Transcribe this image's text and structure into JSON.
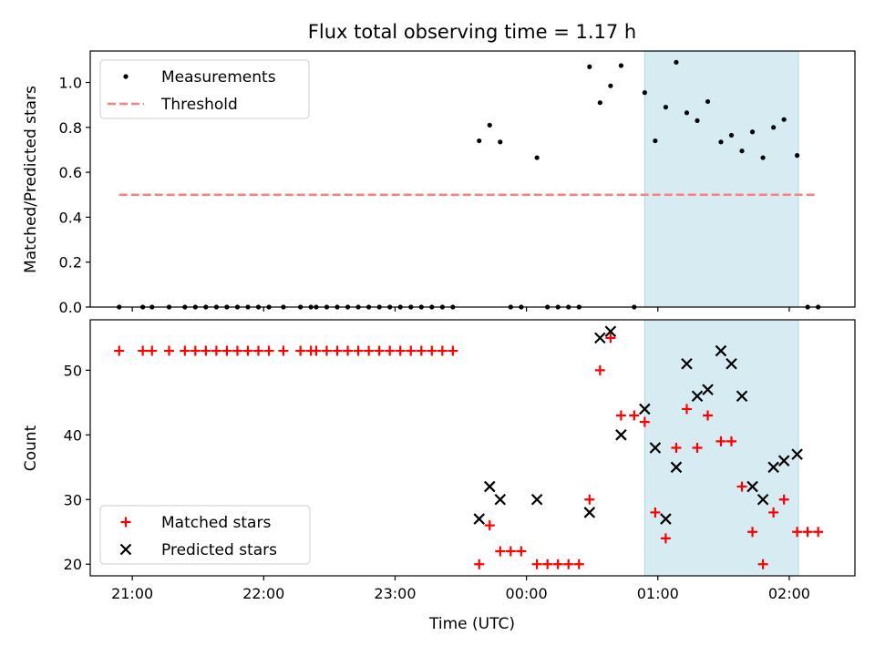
{
  "figure": {
    "title": "Flux total observing time = 1.17 h",
    "x_tick_labels": [
      "21:00",
      "22:00",
      "23:00",
      "00:00",
      "01:00",
      "02:00"
    ],
    "x_tick_hours": [
      21,
      22,
      23,
      24,
      25,
      26
    ],
    "xlabel": "Time (UTC)",
    "xlim_hours": [
      20.68,
      26.5
    ],
    "highlight_span_hours": [
      24.9,
      26.07
    ],
    "highlight_color": "#add8e6"
  },
  "chart_data": [
    {
      "type": "scatter",
      "ylabel": "Matched/Predicted stars",
      "ylim": [
        0,
        1.14
      ],
      "y_ticks": [
        "0.0",
        "0.2",
        "0.4",
        "0.6",
        "0.8",
        "1.0"
      ],
      "y_tick_values": [
        0,
        0.2,
        0.4,
        0.6,
        0.8,
        1.0
      ],
      "legend_position": "top-left",
      "series": [
        {
          "name": "Measurements",
          "color": "#000000",
          "marker": "dot",
          "points": [
            [
              20.9,
              0.0
            ],
            [
              21.08,
              0.0
            ],
            [
              21.15,
              0.0
            ],
            [
              21.28,
              0.0
            ],
            [
              21.4,
              0.0
            ],
            [
              21.48,
              0.0
            ],
            [
              21.56,
              0.0
            ],
            [
              21.64,
              0.0
            ],
            [
              21.72,
              0.0
            ],
            [
              21.8,
              0.0
            ],
            [
              21.88,
              0.0
            ],
            [
              21.96,
              0.0
            ],
            [
              22.04,
              0.0
            ],
            [
              22.15,
              0.0
            ],
            [
              22.28,
              0.0
            ],
            [
              22.36,
              0.0
            ],
            [
              22.4,
              0.0
            ],
            [
              22.48,
              0.0
            ],
            [
              22.56,
              0.0
            ],
            [
              22.64,
              0.0
            ],
            [
              22.72,
              0.0
            ],
            [
              22.8,
              0.0
            ],
            [
              22.88,
              0.0
            ],
            [
              22.96,
              0.0
            ],
            [
              23.04,
              0.0
            ],
            [
              23.12,
              0.0
            ],
            [
              23.2,
              0.0
            ],
            [
              23.28,
              0.0
            ],
            [
              23.36,
              0.0
            ],
            [
              23.44,
              0.0
            ],
            [
              23.64,
              0.74
            ],
            [
              23.72,
              0.81
            ],
            [
              23.8,
              0.735
            ],
            [
              23.88,
              0.0
            ],
            [
              23.96,
              0.0
            ],
            [
              24.08,
              0.665
            ],
            [
              24.16,
              0.0
            ],
            [
              24.24,
              0.0
            ],
            [
              24.32,
              0.0
            ],
            [
              24.4,
              0.0
            ],
            [
              24.48,
              1.07
            ],
            [
              24.56,
              0.91
            ],
            [
              24.64,
              0.985
            ],
            [
              24.72,
              1.075
            ],
            [
              24.82,
              0.0
            ],
            [
              24.9,
              0.955
            ],
            [
              24.98,
              0.74
            ],
            [
              25.06,
              0.89
            ],
            [
              25.14,
              1.09
            ],
            [
              25.22,
              0.865
            ],
            [
              25.3,
              0.83
            ],
            [
              25.38,
              0.915
            ],
            [
              25.48,
              0.735
            ],
            [
              25.56,
              0.765
            ],
            [
              25.64,
              0.695
            ],
            [
              25.72,
              0.78
            ],
            [
              25.8,
              0.665
            ],
            [
              25.88,
              0.8
            ],
            [
              25.96,
              0.835
            ],
            [
              26.06,
              0.675
            ],
            [
              26.14,
              0.0
            ],
            [
              26.22,
              0.0
            ]
          ]
        },
        {
          "name": "Threshold",
          "color": "#ff7f7f",
          "style": "dashed",
          "points": [
            [
              20.9,
              0.5
            ],
            [
              26.2,
              0.5
            ]
          ]
        }
      ]
    },
    {
      "type": "scatter",
      "ylabel": "Count",
      "ylim": [
        18.2,
        57.8
      ],
      "y_ticks": [
        "20",
        "30",
        "40",
        "50"
      ],
      "y_tick_values": [
        20,
        30,
        40,
        50
      ],
      "legend_position": "bottom-left",
      "series": [
        {
          "name": "Matched stars",
          "color": "#ff0000",
          "marker": "plus",
          "points": [
            [
              20.9,
              53
            ],
            [
              21.08,
              53
            ],
            [
              21.15,
              53
            ],
            [
              21.28,
              53
            ],
            [
              21.4,
              53
            ],
            [
              21.48,
              53
            ],
            [
              21.56,
              53
            ],
            [
              21.64,
              53
            ],
            [
              21.72,
              53
            ],
            [
              21.8,
              53
            ],
            [
              21.88,
              53
            ],
            [
              21.96,
              53
            ],
            [
              22.04,
              53
            ],
            [
              22.15,
              53
            ],
            [
              22.28,
              53
            ],
            [
              22.36,
              53
            ],
            [
              22.4,
              53
            ],
            [
              22.48,
              53
            ],
            [
              22.56,
              53
            ],
            [
              22.64,
              53
            ],
            [
              22.72,
              53
            ],
            [
              22.8,
              53
            ],
            [
              22.88,
              53
            ],
            [
              22.96,
              53
            ],
            [
              23.04,
              53
            ],
            [
              23.12,
              53
            ],
            [
              23.2,
              53
            ],
            [
              23.28,
              53
            ],
            [
              23.36,
              53
            ],
            [
              23.44,
              53
            ],
            [
              23.64,
              20
            ],
            [
              23.72,
              26
            ],
            [
              23.8,
              22
            ],
            [
              23.88,
              22
            ],
            [
              23.96,
              22
            ],
            [
              24.08,
              20
            ],
            [
              24.16,
              20
            ],
            [
              24.24,
              20
            ],
            [
              24.32,
              20
            ],
            [
              24.4,
              20
            ],
            [
              24.48,
              30
            ],
            [
              24.56,
              50
            ],
            [
              24.64,
              55
            ],
            [
              24.72,
              43
            ],
            [
              24.82,
              43
            ],
            [
              24.9,
              42
            ],
            [
              24.98,
              28
            ],
            [
              25.06,
              24
            ],
            [
              25.14,
              38
            ],
            [
              25.22,
              44
            ],
            [
              25.3,
              38
            ],
            [
              25.38,
              43
            ],
            [
              25.48,
              39
            ],
            [
              25.56,
              39
            ],
            [
              25.64,
              32
            ],
            [
              25.72,
              25
            ],
            [
              25.8,
              20
            ],
            [
              25.88,
              28
            ],
            [
              25.96,
              30
            ],
            [
              26.06,
              25
            ],
            [
              26.14,
              25
            ],
            [
              26.22,
              25
            ]
          ]
        },
        {
          "name": "Predicted stars",
          "color": "#000000",
          "marker": "x",
          "points": [
            [
              23.64,
              27
            ],
            [
              23.72,
              32
            ],
            [
              23.8,
              30
            ],
            [
              24.08,
              30
            ],
            [
              24.48,
              28
            ],
            [
              24.56,
              55
            ],
            [
              24.64,
              56
            ],
            [
              24.72,
              40
            ],
            [
              24.9,
              44
            ],
            [
              24.98,
              38
            ],
            [
              25.06,
              27
            ],
            [
              25.14,
              35
            ],
            [
              25.22,
              51
            ],
            [
              25.3,
              46
            ],
            [
              25.38,
              47
            ],
            [
              25.48,
              53
            ],
            [
              25.56,
              51
            ],
            [
              25.64,
              46
            ],
            [
              25.72,
              32
            ],
            [
              25.8,
              30
            ],
            [
              25.88,
              35
            ],
            [
              25.96,
              36
            ],
            [
              26.06,
              37
            ]
          ]
        }
      ]
    }
  ]
}
